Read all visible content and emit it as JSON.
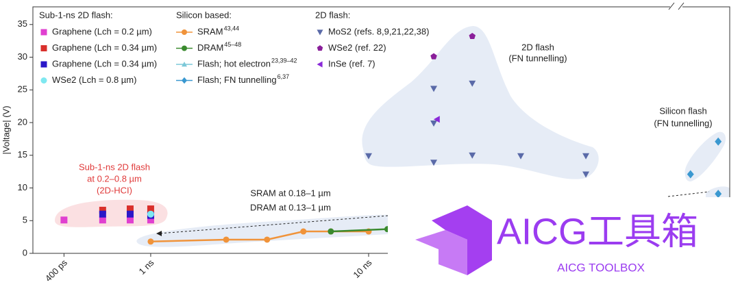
{
  "chart_data": {
    "type": "scatter",
    "y_label": "|Voltage| (V)",
    "xscale": "log",
    "xlim": [
      0.288,
      454
    ],
    "ylim": [
      0,
      37.7
    ],
    "xticks": [
      {
        "value": 0.4,
        "label": "400 ps"
      },
      {
        "value": 1,
        "label": "1 ns"
      },
      {
        "value": 10,
        "label": "10 ns"
      }
    ],
    "yticks": [
      0,
      5,
      10,
      15,
      20,
      25,
      30,
      35
    ],
    "annotations": [
      {
        "lines": [
          "Sub-1-ns 2D flash",
          "at 0.2–0.8 µm",
          "(2D-HCI)"
        ],
        "color": "#e03a3a"
      },
      {
        "lines": [
          "SRAM at 0.18–1 µm",
          "DRAM at 0.13–1 µm"
        ],
        "color": "#222222"
      },
      {
        "lines": [
          "2D flash",
          "(FN tunnelling)"
        ],
        "color": "#222222"
      },
      {
        "lines": [
          "Silicon flash",
          "(FN tunnelling)"
        ],
        "color": "#222222"
      }
    ],
    "groups": [
      {
        "title": "Sub-1-ns 2D flash:",
        "series": [
          {
            "name": "Graphene (Lch = 0.2 µm)",
            "color": "#e040d0",
            "marker": "square",
            "x": [
              0.4,
              0.602,
              0.805,
              1
            ],
            "values": [
              5.1,
              5.1,
              5.1,
              5.1
            ]
          },
          {
            "name": "Graphene (Lch = 0.34 µm)",
            "color": "#d9302c",
            "marker": "square",
            "x": [
              0.602,
              0.805,
              1
            ],
            "values": [
              6.6,
              6.8,
              6.8
            ]
          },
          {
            "name": "Graphene (Lch = 0.34 µm)",
            "color": "#2a18c8",
            "marker": "square",
            "x": [
              0.602,
              0.805,
              1
            ],
            "values": [
              6.0,
              6.0,
              5.8
            ]
          },
          {
            "name": "WSe2 (Lch = 0.8 µm)",
            "color": "#7fe8f0",
            "marker": "circle",
            "x": [
              1
            ],
            "values": [
              6.0
            ]
          }
        ]
      },
      {
        "title": "Silicon based:",
        "series": [
          {
            "name": "SRAM",
            "refs": "43,44",
            "color": "#f0933a",
            "marker": "circle",
            "line": true,
            "x": [
              1,
              2.22,
              3.42,
              5.02,
              6.71,
              10
            ],
            "values": [
              1.8,
              2.1,
              2.1,
              3.35,
              3.35,
              3.35
            ]
          },
          {
            "name": "DRAM",
            "refs": "45–48",
            "color": "#3a8a2e",
            "marker": "circle",
            "line": true,
            "x": [
              6.71,
              12.2
            ],
            "values": [
              3.35,
              3.7
            ]
          },
          {
            "name": "Flash; hot electron",
            "refs": "23,39–42",
            "color": "#7cc8d8",
            "marker": "triangle-up",
            "line": true,
            "x": [],
            "values": []
          },
          {
            "name": "Flash; FN tunnelling",
            "refs": "6,37",
            "color": "#3a98d0",
            "marker": "diamond",
            "x": [
              402,
              300,
              402
            ],
            "values": [
              17.1,
              12.1,
              9.1
            ]
          }
        ]
      },
      {
        "title": "2D flash:",
        "series": [
          {
            "name": "MoS2 (refs. 8,9,21,22,38)",
            "color": "#5a6aa8",
            "marker": "triangle-down",
            "x": [
              10,
              19.9,
              19.9,
              19.9,
              29.9,
              29.9,
              49.9,
              99.3,
              99.3
            ],
            "values": [
              14.9,
              13.9,
              25.2,
              19.9,
              15.0,
              26.0,
              14.9,
              14.9,
              12.1
            ]
          },
          {
            "name": "WSe2 (ref. 22)",
            "color": "#8a1f9a",
            "marker": "pentagon",
            "x": [
              19.9,
              29.9
            ],
            "values": [
              30.1,
              33.2
            ]
          },
          {
            "name": "InSe (ref. 7)",
            "color": "#8a2ad8",
            "marker": "triangle-left",
            "x": [
              20.6
            ],
            "values": [
              20.5
            ]
          }
        ]
      }
    ]
  },
  "watermark": {
    "title": "AICG工具箱",
    "subtitle": "AICG TOOLBOX"
  }
}
